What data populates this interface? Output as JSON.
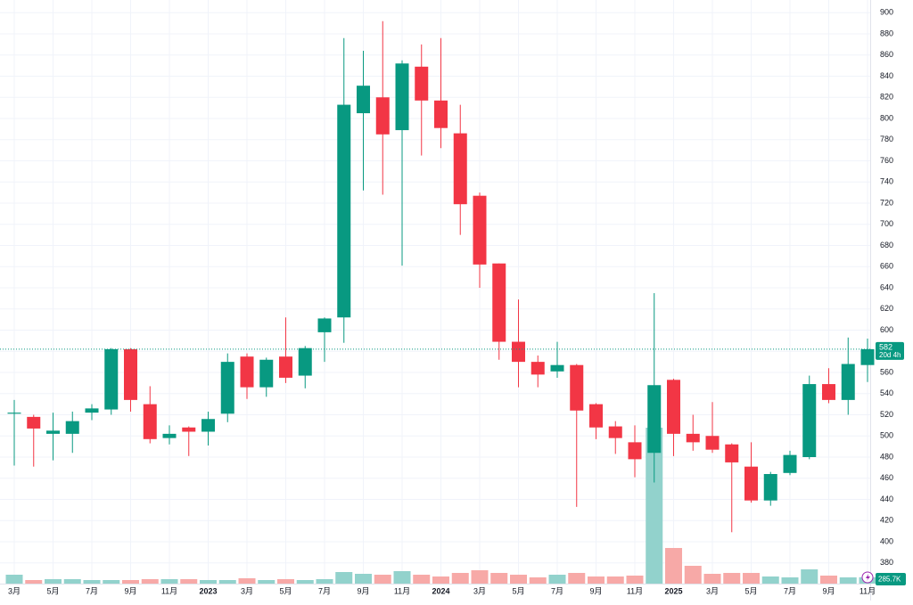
{
  "chart_data": {
    "type": "candlestick",
    "categories": [
      "3月",
      null,
      "5月",
      null,
      "7月",
      null,
      "9月",
      null,
      "11月",
      null,
      "2023",
      null,
      "3月",
      null,
      "5月",
      null,
      "7月",
      null,
      "9月",
      null,
      "11月",
      null,
      "2024",
      null,
      "3月",
      null,
      "5月",
      null,
      "7月",
      null,
      "9月",
      null,
      "11月",
      null,
      "2025",
      null,
      "3月",
      null,
      "5月",
      null,
      "7月",
      null,
      "9月",
      null,
      "11月"
    ],
    "open": [
      521,
      518,
      502,
      502,
      522,
      525,
      582,
      530,
      498,
      508,
      504,
      521,
      575,
      546,
      575,
      557,
      598,
      612,
      805,
      820,
      789,
      849,
      817,
      786,
      727,
      663,
      589,
      570,
      561,
      567,
      530,
      509,
      494,
      484,
      553,
      502,
      500,
      492,
      471,
      439,
      465,
      480,
      549,
      534,
      567
    ],
    "high": [
      534,
      520,
      522,
      523,
      530,
      583,
      583,
      547,
      510,
      509,
      523,
      578,
      578,
      574,
      612,
      585,
      612,
      876,
      864,
      892,
      855,
      870,
      876,
      813,
      730,
      663,
      629,
      576,
      589,
      568,
      531,
      514,
      510,
      635,
      554,
      520,
      532,
      493,
      494,
      466,
      486,
      557,
      564,
      593,
      592
    ],
    "low": [
      472,
      471,
      477,
      484,
      515,
      520,
      523,
      493,
      492,
      481,
      491,
      513,
      535,
      537,
      550,
      545,
      570,
      588,
      732,
      728,
      661,
      765,
      772,
      690,
      640,
      572,
      546,
      546,
      555,
      433,
      497,
      483,
      461,
      456,
      481,
      486,
      484,
      409,
      437,
      434,
      463,
      478,
      531,
      520,
      551
    ],
    "close": [
      522,
      507,
      505,
      514,
      526,
      582,
      534,
      497,
      502,
      504,
      516,
      570,
      546,
      572,
      555,
      583,
      611,
      813,
      831,
      785,
      852,
      817,
      791,
      719,
      662,
      589,
      570,
      558,
      567,
      524,
      508,
      498,
      478,
      548,
      502,
      494,
      487,
      475,
      439,
      464,
      482,
      549,
      534,
      568,
      582
    ],
    "volume": [
      400,
      160,
      200,
      200,
      160,
      160,
      160,
      200,
      200,
      200,
      160,
      160,
      240,
      160,
      200,
      160,
      200,
      520,
      440,
      400,
      560,
      400,
      320,
      480,
      600,
      480,
      400,
      280,
      400,
      480,
      320,
      320,
      360,
      7000,
      1600,
      800,
      440,
      480,
      480,
      320,
      280,
      640,
      360,
      280,
      285.7
    ],
    "volume_label": "285.7K",
    "countdown": "20d 4h",
    "colors": {
      "up": "#089981",
      "down": "#f23645",
      "volume_up": "#92d2cc",
      "volume_down": "#f7a9a7"
    },
    "ylim": [
      352,
      912
    ],
    "yticks": [
      380,
      400,
      420,
      440,
      460,
      480,
      500,
      520,
      540,
      560,
      580,
      600,
      620,
      640,
      660,
      680,
      700,
      720,
      740,
      760,
      780,
      800,
      820,
      840,
      860,
      880,
      900
    ],
    "grid": true
  }
}
